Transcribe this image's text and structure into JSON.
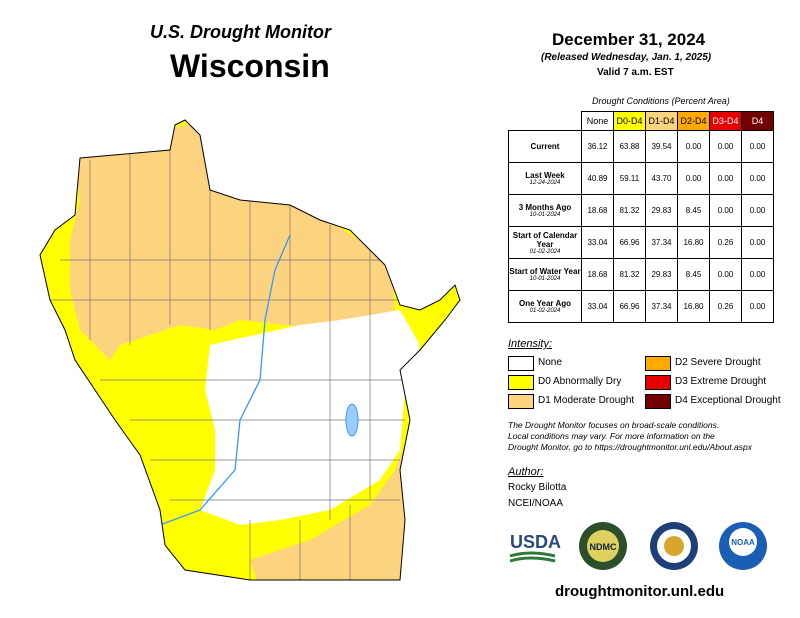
{
  "header": {
    "title": "U.S. Drought Monitor",
    "state": "Wisconsin"
  },
  "date": {
    "main": "December 31, 2024",
    "released": "(Released Wednesday, Jan. 1, 2025)",
    "valid": "Valid 7 a.m. EST"
  },
  "table": {
    "caption": "Drought Conditions (Percent Area)",
    "columns": [
      "None",
      "D0-D4",
      "D1-D4",
      "D2-D4",
      "D3-D4",
      "D4"
    ],
    "rows": [
      {
        "label": "Current",
        "values": [
          "36.12",
          "63.88",
          "39.54",
          "0.00",
          "0.00",
          "0.00"
        ]
      },
      {
        "label": "Last Week",
        "date": "12-24-2024",
        "values": [
          "40.89",
          "59.11",
          "43.70",
          "0.00",
          "0.00",
          "0.00"
        ]
      },
      {
        "label": "3 Months Ago",
        "date": "10-01-2024",
        "values": [
          "18.68",
          "81.32",
          "29.83",
          "8.45",
          "0.00",
          "0.00"
        ]
      },
      {
        "label": "Start of Calendar Year",
        "date": "01-02-2024",
        "values": [
          "33.04",
          "66.96",
          "37.34",
          "16.80",
          "0.26",
          "0.00"
        ]
      },
      {
        "label": "Start of Water Year",
        "date": "10-01-2024",
        "values": [
          "18.68",
          "81.32",
          "29.83",
          "8.45",
          "0.00",
          "0.00"
        ]
      },
      {
        "label": "One Year Ago",
        "date": "01-02-2024",
        "values": [
          "33.04",
          "66.96",
          "37.34",
          "16.80",
          "0.26",
          "0.00"
        ]
      }
    ]
  },
  "legend": {
    "title": "Intensity:",
    "items": [
      {
        "label": "None",
        "color": "#ffffff"
      },
      {
        "label": "D0 Abnormally Dry",
        "color": "#ffff00"
      },
      {
        "label": "D1 Moderate Drought",
        "color": "#fcd37f"
      },
      {
        "label": "D2 Severe Drought",
        "color": "#ffaa00"
      },
      {
        "label": "D3 Extreme Drought",
        "color": "#e60000"
      },
      {
        "label": "D4 Exceptional Drought",
        "color": "#730000"
      }
    ]
  },
  "note": [
    "The Drought Monitor focuses on broad-scale conditions.",
    "Local conditions may vary. For more information on the",
    "Drought Monitor, go to https://droughtmonitor.unl.edu/About.aspx"
  ],
  "author": {
    "title": "Author:",
    "names": [
      "Rocky Bilotta",
      "NCEI/NOAA"
    ]
  },
  "logos": [
    "USDA",
    "NDMC",
    "NOAA"
  ],
  "url": "droughtmonitor.unl.edu"
}
